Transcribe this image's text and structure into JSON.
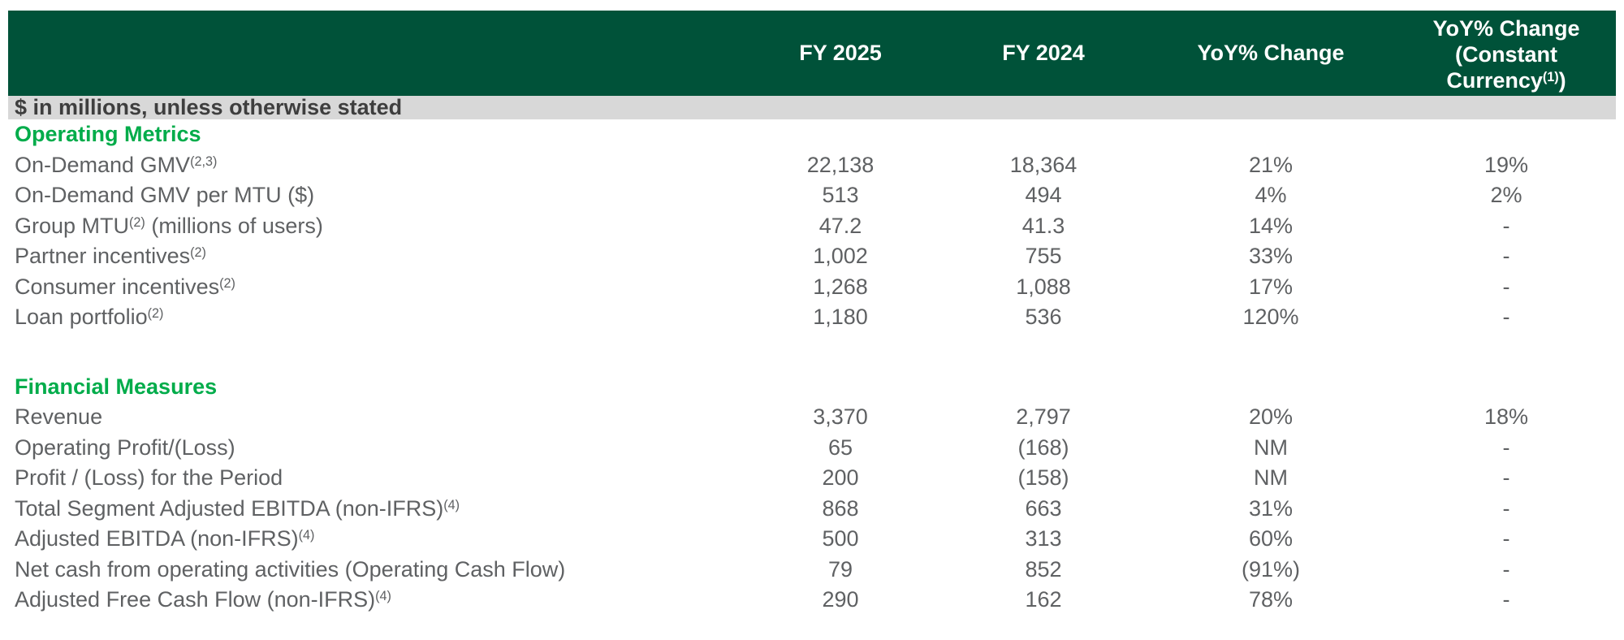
{
  "colors": {
    "header_bg": "#005239",
    "header_text": "#ffffff",
    "section_title": "#00AC4A",
    "unit_band_bg": "#D8D8D8",
    "unit_text": "#3E3E3E",
    "body_text": "#5F6163",
    "page_bg": "#ffffff"
  },
  "table": {
    "unit_note": "$ in millions, unless otherwise stated",
    "header": {
      "metric_col": "",
      "columns": [
        "FY 2025",
        "FY 2024",
        "YoY% Change"
      ],
      "constant_currency": {
        "lines": [
          "YoY% Change",
          "(Constant",
          "Currency"
        ],
        "sup": "(1)",
        "suffix": ")"
      }
    },
    "sections": [
      {
        "title": "Operating Metrics",
        "rows": [
          {
            "label": "On-Demand GMV",
            "sup": "(2,3)",
            "label_post": "",
            "values": [
              "22,138",
              "18,364",
              "21%",
              "19%"
            ]
          },
          {
            "label": "On-Demand GMV per MTU ($)",
            "sup": "",
            "label_post": "",
            "values": [
              "513",
              "494",
              "4%",
              "2%"
            ]
          },
          {
            "label": "Group MTU",
            "sup": "(2)",
            "label_post": " (millions of users)",
            "values": [
              "47.2",
              "41.3",
              "14%",
              "-"
            ]
          },
          {
            "label": "Partner incentives",
            "sup": "(2)",
            "label_post": "",
            "values": [
              "1,002",
              "755",
              "33%",
              "-"
            ]
          },
          {
            "label": "Consumer incentives",
            "sup": "(2)",
            "label_post": "",
            "values": [
              "1,268",
              "1,088",
              "17%",
              "-"
            ]
          },
          {
            "label": "Loan portfolio",
            "sup": "(2)",
            "label_post": "",
            "values": [
              "1,180",
              "536",
              "120%",
              "-"
            ]
          }
        ]
      },
      {
        "title": "Financial Measures",
        "rows": [
          {
            "label": "Revenue",
            "sup": "",
            "label_post": "",
            "values": [
              "3,370",
              "2,797",
              "20%",
              "18%"
            ]
          },
          {
            "label": "Operating Profit/(Loss)",
            "sup": "",
            "label_post": "",
            "values": [
              "65",
              "(168)",
              "NM",
              "-"
            ]
          },
          {
            "label": "Profit / (Loss) for the Period",
            "sup": "",
            "label_post": "",
            "values": [
              "200",
              "(158)",
              "NM",
              "-"
            ]
          },
          {
            "label": "Total Segment Adjusted EBITDA (non-IFRS)",
            "sup": "(4)",
            "label_post": "",
            "values": [
              "868",
              "663",
              "31%",
              "-"
            ]
          },
          {
            "label": "Adjusted EBITDA (non-IFRS)",
            "sup": "(4)",
            "label_post": "",
            "values": [
              "500",
              "313",
              "60%",
              "-"
            ]
          },
          {
            "label": "Net cash from operating activities (Operating Cash Flow)",
            "sup": "",
            "label_post": "",
            "values": [
              "79",
              "852",
              "(91%)",
              "-"
            ]
          },
          {
            "label": "Adjusted Free Cash Flow (non-IFRS)",
            "sup": "(4)",
            "label_post": "",
            "values": [
              "290",
              "162",
              "78%",
              "-"
            ]
          }
        ]
      }
    ]
  }
}
